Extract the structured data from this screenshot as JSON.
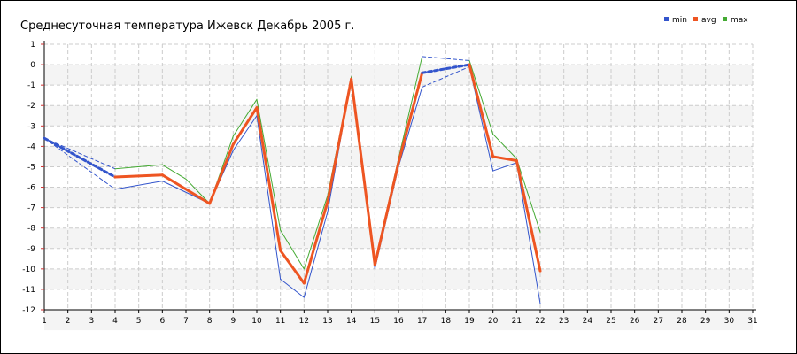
{
  "chart_data": {
    "type": "line",
    "title": "Среднесуточная температура Ижевск  Декабрь 2005 г.",
    "xlabel": "",
    "ylabel": "",
    "xlim": [
      1,
      31
    ],
    "ylim": [
      -12,
      1
    ],
    "x_ticks": [
      1,
      2,
      3,
      4,
      5,
      6,
      7,
      8,
      9,
      10,
      11,
      12,
      13,
      14,
      15,
      16,
      17,
      18,
      19,
      20,
      21,
      22,
      23,
      24,
      25,
      26,
      27,
      28,
      29,
      30,
      31
    ],
    "y_ticks": [
      1,
      0,
      -1,
      -2,
      -3,
      -4,
      -5,
      -6,
      -7,
      -8,
      -9,
      -10,
      -11,
      -12
    ],
    "grid": true,
    "legend_position": "top-right",
    "series": [
      {
        "name": "min",
        "color": "#3355cc",
        "points": [
          [
            1,
            -3.6
          ],
          [
            4,
            -6.1
          ],
          [
            6,
            -5.7
          ],
          [
            8,
            -6.8
          ],
          [
            9,
            -4.2
          ],
          [
            10,
            -2.5
          ],
          [
            11,
            -10.5
          ],
          [
            12,
            -11.4
          ],
          [
            13,
            -7.2
          ],
          [
            14,
            -0.7
          ],
          [
            15,
            -10.0
          ],
          [
            16,
            -5.0
          ],
          [
            17,
            -1.1
          ],
          [
            19,
            -0.1
          ],
          [
            20,
            -5.2
          ],
          [
            21,
            -4.8
          ],
          [
            22,
            -11.7
          ]
        ]
      },
      {
        "name": "avg",
        "color": "#ee5522",
        "points": [
          [
            1,
            -3.6
          ],
          [
            4,
            -5.5
          ],
          [
            6,
            -5.4
          ],
          [
            8,
            -6.8
          ],
          [
            9,
            -3.9
          ],
          [
            10,
            -2.1
          ],
          [
            11,
            -9.1
          ],
          [
            12,
            -10.7
          ],
          [
            13,
            -6.7
          ],
          [
            14,
            -0.7
          ],
          [
            15,
            -9.8
          ],
          [
            16,
            -4.8
          ],
          [
            17,
            -0.4
          ],
          [
            19,
            0.0
          ],
          [
            20,
            -4.5
          ],
          [
            21,
            -4.7
          ],
          [
            22,
            -10.1
          ]
        ]
      },
      {
        "name": "max",
        "color": "#44aa33",
        "points": [
          [
            1,
            -3.6
          ],
          [
            4,
            -5.1
          ],
          [
            6,
            -4.9
          ],
          [
            7,
            -5.6
          ],
          [
            8,
            -6.8
          ],
          [
            9,
            -3.5
          ],
          [
            10,
            -1.7
          ],
          [
            11,
            -8.1
          ],
          [
            12,
            -10.0
          ],
          [
            13,
            -6.4
          ],
          [
            14,
            -0.6
          ],
          [
            15,
            -9.7
          ],
          [
            16,
            -4.6
          ],
          [
            17,
            0.4
          ],
          [
            19,
            0.2
          ],
          [
            20,
            -3.4
          ],
          [
            21,
            -4.6
          ],
          [
            22,
            -8.2
          ]
        ]
      }
    ],
    "gap_spans": [
      [
        1,
        4
      ],
      [
        17,
        19
      ]
    ]
  }
}
